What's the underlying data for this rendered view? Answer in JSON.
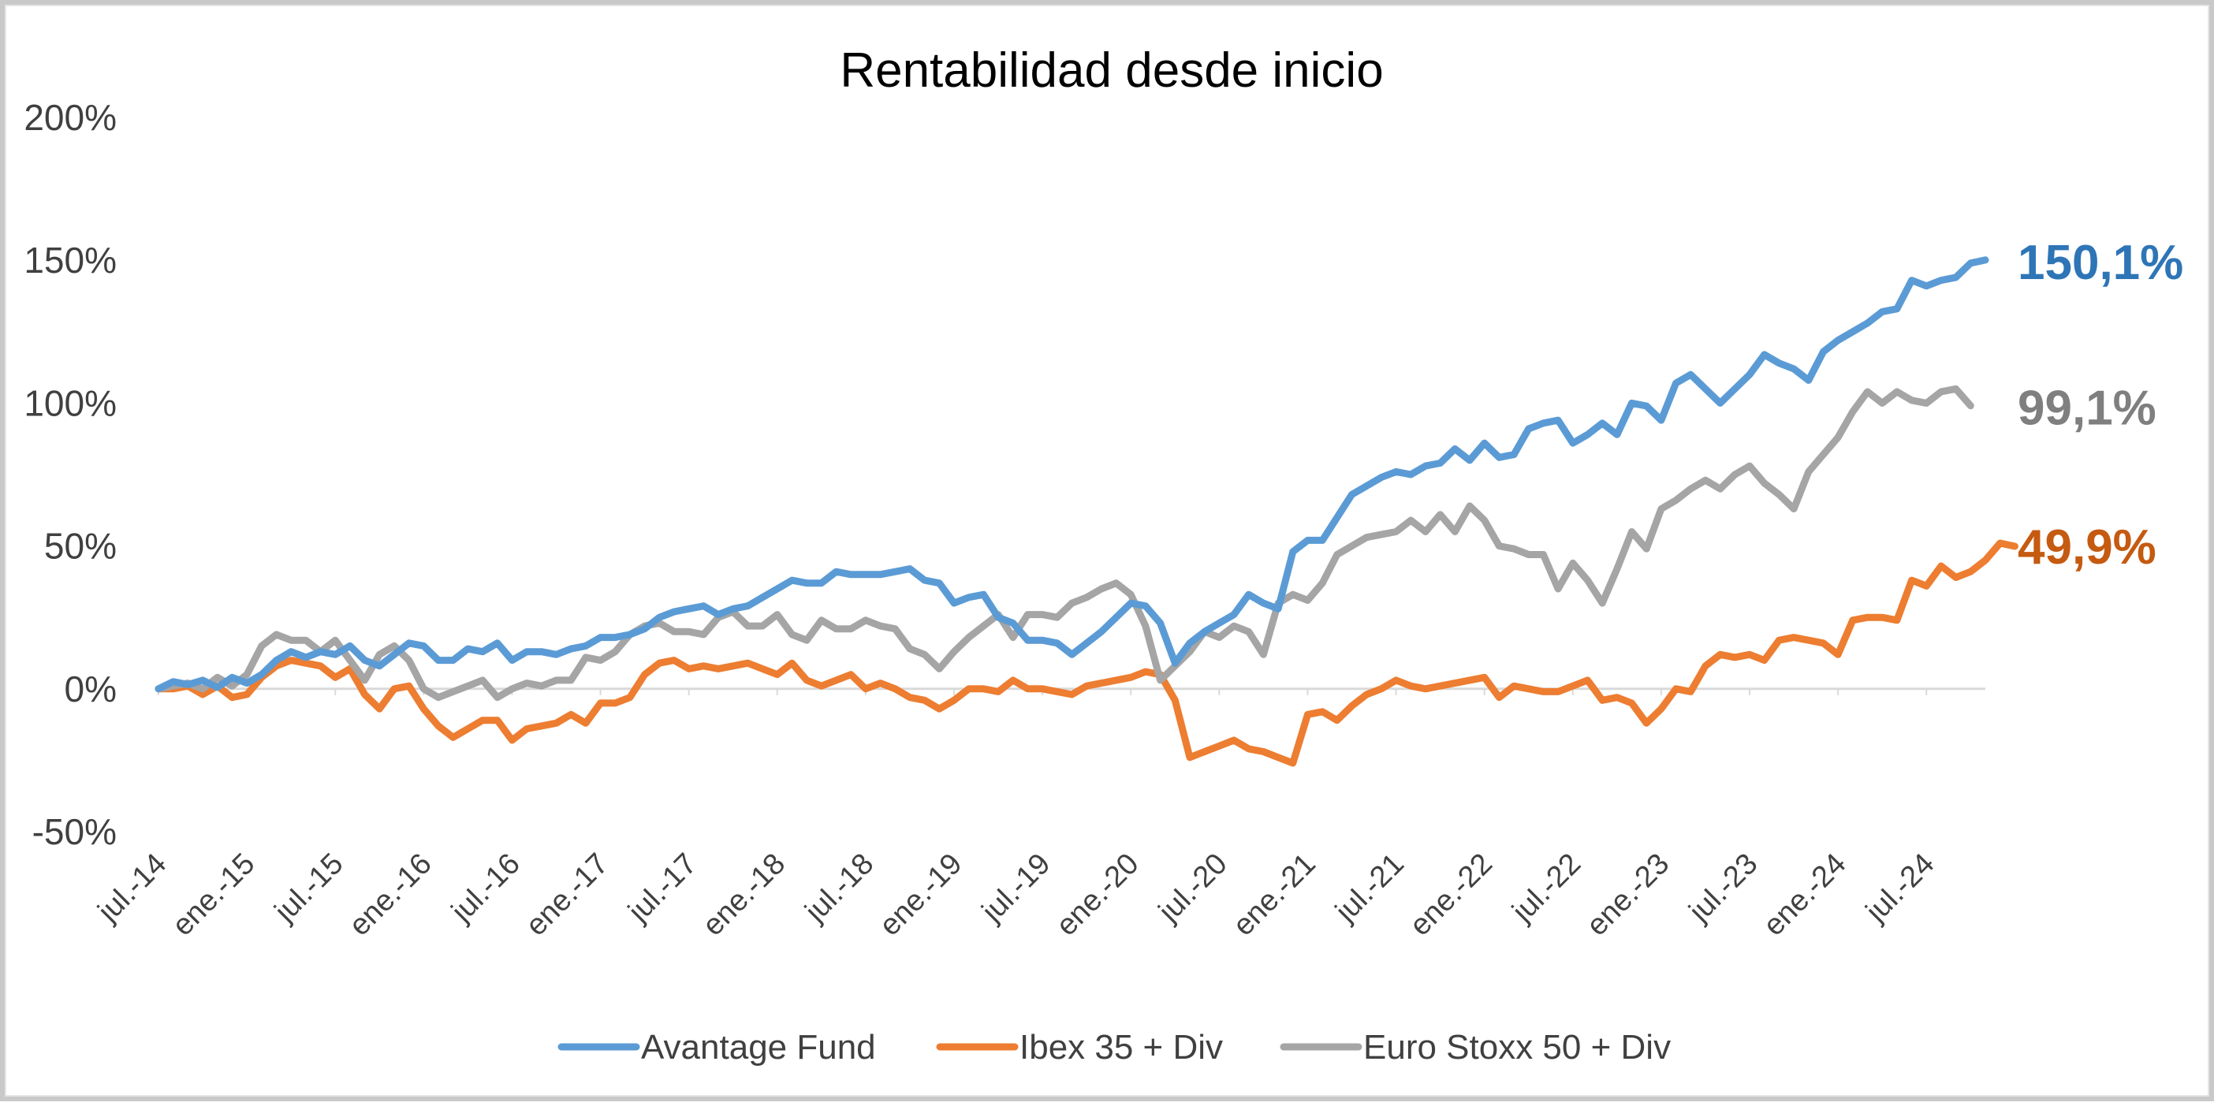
{
  "chart_data": {
    "type": "line",
    "title": "Rentabilidad desde inicio",
    "xlabel": "",
    "ylabel": "",
    "ylim": [
      -50,
      200
    ],
    "y_ticks": [
      "200%",
      "150%",
      "100%",
      "50%",
      "0%",
      "-50%"
    ],
    "y_tick_values": [
      200,
      150,
      100,
      50,
      0,
      -50
    ],
    "grid": false,
    "legend_position": "bottom",
    "x_ticks": [
      "jul.-14",
      "ene.-15",
      "jul.-15",
      "ene.-16",
      "jul.-16",
      "ene.-17",
      "jul.-17",
      "ene.-18",
      "jul.-18",
      "ene.-19",
      "jul.-19",
      "ene.-20",
      "jul.-20",
      "ene.-21",
      "jul.-21",
      "ene.-22",
      "jul.-22",
      "ene.-23",
      "jul.-23",
      "ene.-24",
      "jul.-24"
    ],
    "x_start": "2014-07",
    "x_end": "2024-10",
    "series": [
      {
        "name": "Avantage Fund",
        "color": "#5b9bd5",
        "end_label": "150,1%",
        "end_label_color": "#2e75b6",
        "values": [
          0,
          2.5,
          1.5,
          3,
          0.5,
          4,
          2,
          5,
          10,
          13,
          11,
          13,
          12,
          15,
          10,
          8,
          12,
          16,
          15,
          10,
          10,
          14,
          13,
          16,
          10,
          13,
          13,
          12,
          14,
          15,
          18,
          18,
          19,
          21,
          25,
          27,
          28,
          29,
          26,
          28,
          29,
          32,
          35,
          38,
          37,
          37,
          41,
          40,
          40,
          40,
          41,
          42,
          38,
          37,
          30,
          32,
          33,
          25,
          23,
          17,
          17,
          16,
          12,
          16,
          20,
          25,
          30,
          29,
          23,
          9,
          16,
          20,
          23,
          26,
          33,
          30,
          28,
          48,
          52,
          52,
          60,
          68,
          71,
          74,
          76,
          75,
          78,
          79,
          84,
          80,
          86,
          81,
          82,
          91,
          93,
          94,
          86,
          89,
          93,
          89,
          100,
          99,
          94,
          107,
          110,
          105,
          100,
          105,
          110,
          117,
          114,
          112,
          108,
          118,
          122,
          125,
          128,
          132,
          133,
          143,
          141,
          143,
          144,
          149,
          150.1
        ]
      },
      {
        "name": "Ibex 35 + Div",
        "color": "#ed7d31",
        "end_label": "49,9%",
        "end_label_color": "#c55a11",
        "values": [
          0,
          0,
          1,
          -2,
          1,
          -3,
          -2,
          4,
          8,
          10,
          9,
          8,
          4,
          7,
          -2,
          -7,
          0,
          1,
          -7,
          -13,
          -17,
          -14,
          -11,
          -11,
          -18,
          -14,
          -13,
          -12,
          -9,
          -12,
          -5,
          -5,
          -3,
          5,
          9,
          10,
          7,
          8,
          7,
          8,
          9,
          7,
          5,
          9,
          3,
          1,
          3,
          5,
          0,
          2,
          0,
          -3,
          -4,
          -7,
          -4,
          0,
          0,
          -1,
          3,
          0,
          0,
          -1,
          -2,
          1,
          2,
          3,
          4,
          6,
          5,
          -4,
          -24,
          -22,
          -20,
          -18,
          -21,
          -22,
          -24,
          -26,
          -9,
          -8,
          -11,
          -6,
          -2,
          0,
          3,
          1,
          0,
          1,
          2,
          3,
          4,
          -3,
          1,
          0,
          -1,
          -1,
          1,
          3,
          -4,
          -3,
          -5,
          -12,
          -7,
          0,
          -1,
          8,
          12,
          11,
          12,
          10,
          17,
          18,
          17,
          16,
          12,
          24,
          25,
          25,
          24,
          38,
          36,
          43,
          39,
          41,
          45,
          51,
          49.9
        ]
      },
      {
        "name": "Euro Stoxx 50 + Div",
        "color": "#a5a5a5",
        "end_label": "99,1%",
        "end_label_color": "#7f7f7f",
        "values": [
          0,
          1,
          2,
          0,
          4,
          1,
          5,
          15,
          19,
          17,
          17,
          13,
          17,
          10,
          3,
          12,
          15,
          10,
          0,
          -3,
          -1,
          1,
          3,
          -3,
          0,
          2,
          1,
          3,
          3,
          11,
          10,
          13,
          19,
          22,
          23,
          20,
          20,
          19,
          25,
          27,
          22,
          22,
          26,
          19,
          17,
          24,
          21,
          21,
          24,
          22,
          21,
          14,
          12,
          7,
          13,
          18,
          22,
          26,
          18,
          26,
          26,
          25,
          30,
          32,
          35,
          37,
          33,
          22,
          3,
          8,
          13,
          20,
          18,
          22,
          20,
          12,
          30,
          33,
          31,
          37,
          47,
          50,
          53,
          54,
          55,
          59,
          55,
          61,
          55,
          64,
          59,
          50,
          49,
          47,
          47,
          35,
          44,
          38,
          30,
          42,
          55,
          49,
          63,
          66,
          70,
          73,
          70,
          75,
          78,
          72,
          68,
          63,
          76,
          82,
          88,
          97,
          104,
          100,
          104,
          101,
          100,
          104,
          105,
          99.1
        ]
      }
    ]
  }
}
